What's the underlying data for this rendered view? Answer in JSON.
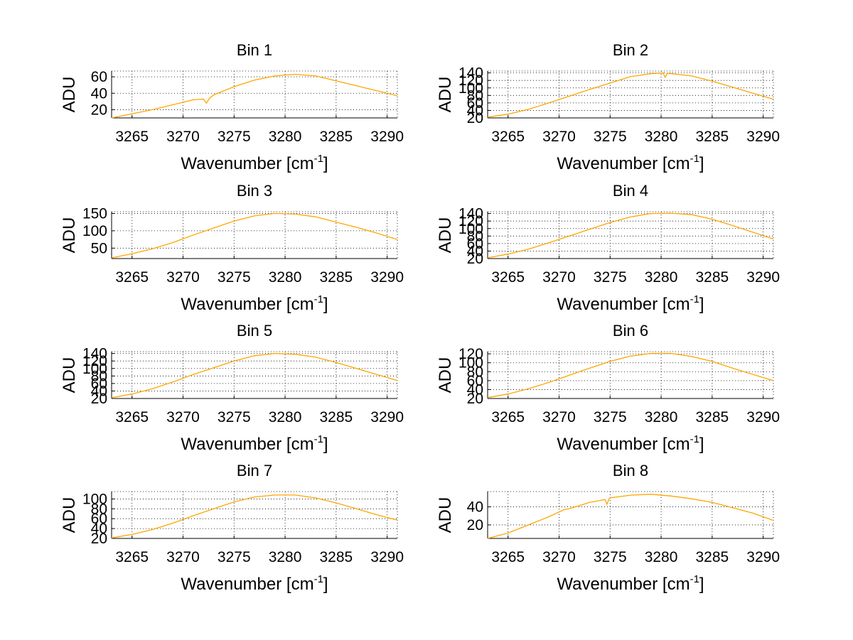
{
  "chart_data": [
    {
      "type": "line",
      "title": "Bin 1",
      "xlabel": "Wavenumber [cm",
      "xlabel_sup": "-1",
      "xlabel_end": "]",
      "ylabel": "ADU",
      "xlim": [
        3263,
        3291
      ],
      "xticks": [
        3265,
        3270,
        3275,
        3280,
        3285,
        3290
      ],
      "ylim": [
        10,
        67
      ],
      "yticks": [
        20,
        40,
        60
      ],
      "ytick_labels": [
        "20",
        "40",
        "60"
      ],
      "grid": true,
      "line_color": "#ffa500",
      "x": [
        3263,
        3265,
        3267,
        3269,
        3271,
        3272,
        3272.3,
        3272.6,
        3273,
        3275,
        3277,
        3279,
        3281,
        3283,
        3285,
        3287,
        3289,
        3291
      ],
      "values": [
        10,
        15,
        20,
        26,
        32,
        33,
        28,
        34,
        38,
        48,
        56,
        61,
        63,
        61,
        55,
        49,
        43,
        37
      ]
    },
    {
      "type": "line",
      "title": "Bin 2",
      "xlabel": "Wavenumber [cm",
      "xlabel_sup": "-1",
      "xlabel_end": "]",
      "ylabel": "ADU",
      "xlim": [
        3263,
        3291
      ],
      "xticks": [
        3265,
        3270,
        3275,
        3280,
        3285,
        3290
      ],
      "ylim": [
        20,
        145
      ],
      "yticks": [
        20,
        40,
        60,
        80,
        100,
        120,
        140
      ],
      "ytick_labels": [
        "20",
        "40",
        "60",
        "80",
        "100",
        "120",
        "140"
      ],
      "grid": true,
      "line_color": "#ffa500",
      "x": [
        3263,
        3265,
        3267,
        3269,
        3271,
        3273,
        3275,
        3277,
        3279,
        3280.2,
        3280.4,
        3280.6,
        3281,
        3283,
        3285,
        3287,
        3289,
        3291
      ],
      "values": [
        22,
        30,
        43,
        60,
        78,
        96,
        113,
        130,
        138,
        140,
        128,
        139,
        138,
        132,
        118,
        102,
        86,
        70
      ]
    },
    {
      "type": "line",
      "title": "Bin 3",
      "xlabel": "Wavenumber [cm",
      "xlabel_sup": "-1",
      "xlabel_end": "]",
      "ylabel": "ADU",
      "xlim": [
        3263,
        3291
      ],
      "xticks": [
        3265,
        3270,
        3275,
        3280,
        3285,
        3290
      ],
      "ylim": [
        20,
        155
      ],
      "yticks": [
        50,
        100,
        150
      ],
      "ytick_labels": [
        "50",
        "100",
        "150"
      ],
      "grid": true,
      "line_color": "#ffa500",
      "x": [
        3263,
        3265,
        3267,
        3269,
        3271,
        3273,
        3275,
        3277,
        3279,
        3281,
        3283,
        3285,
        3287,
        3289,
        3291
      ],
      "values": [
        22,
        34,
        48,
        66,
        88,
        108,
        128,
        143,
        150,
        148,
        140,
        125,
        110,
        93,
        75
      ]
    },
    {
      "type": "line",
      "title": "Bin 4",
      "xlabel": "Wavenumber [cm",
      "xlabel_sup": "-1",
      "xlabel_end": "]",
      "ylabel": "ADU",
      "xlim": [
        3263,
        3291
      ],
      "xticks": [
        3265,
        3270,
        3275,
        3280,
        3285,
        3290
      ],
      "ylim": [
        20,
        145
      ],
      "yticks": [
        20,
        40,
        60,
        80,
        100,
        120,
        140
      ],
      "ytick_labels": [
        "20",
        "40",
        "60",
        "80",
        "100",
        "120",
        "140"
      ],
      "grid": true,
      "line_color": "#ffa500",
      "x": [
        3263,
        3265,
        3267,
        3269,
        3271,
        3273,
        3275,
        3277,
        3279,
        3281,
        3283,
        3285,
        3287,
        3289,
        3291
      ],
      "values": [
        22,
        32,
        45,
        62,
        80,
        98,
        116,
        131,
        140,
        141,
        137,
        125,
        108,
        90,
        72
      ]
    },
    {
      "type": "line",
      "title": "Bin 5",
      "xlabel": "Wavenumber [cm",
      "xlabel_sup": "-1",
      "xlabel_end": "]",
      "ylabel": "ADU",
      "xlim": [
        3263,
        3291
      ],
      "xticks": [
        3265,
        3270,
        3275,
        3280,
        3285,
        3290
      ],
      "ylim": [
        20,
        145
      ],
      "yticks": [
        20,
        40,
        60,
        80,
        100,
        120,
        140
      ],
      "ytick_labels": [
        "20",
        "40",
        "60",
        "80",
        "100",
        "120",
        "140"
      ],
      "grid": true,
      "line_color": "#ffa500",
      "x": [
        3263,
        3265,
        3267,
        3269,
        3271,
        3273,
        3275,
        3277,
        3279,
        3281,
        3283,
        3285,
        3287,
        3289,
        3291
      ],
      "values": [
        22,
        32,
        46,
        64,
        84,
        102,
        120,
        134,
        140,
        138,
        130,
        116,
        100,
        84,
        68
      ]
    },
    {
      "type": "line",
      "title": "Bin 6",
      "xlabel": "Wavenumber [cm",
      "xlabel_sup": "-1",
      "xlabel_end": "]",
      "ylabel": "ADU",
      "xlim": [
        3263,
        3291
      ],
      "xticks": [
        3265,
        3270,
        3275,
        3280,
        3285,
        3290
      ],
      "ylim": [
        20,
        125
      ],
      "yticks": [
        20,
        40,
        60,
        80,
        100,
        120
      ],
      "ytick_labels": [
        "20",
        "40",
        "60",
        "80",
        "100",
        "120"
      ],
      "grid": true,
      "line_color": "#ffa500",
      "x": [
        3263,
        3265,
        3267,
        3269,
        3271,
        3273,
        3275,
        3277,
        3279,
        3281,
        3283,
        3285,
        3287,
        3289,
        3291
      ],
      "values": [
        22,
        30,
        42,
        56,
        72,
        88,
        103,
        115,
        121,
        121,
        114,
        103,
        88,
        74,
        60
      ]
    },
    {
      "type": "line",
      "title": "Bin 7",
      "xlabel": "Wavenumber [cm",
      "xlabel_sup": "-1",
      "xlabel_end": "]",
      "ylabel": "ADU",
      "xlim": [
        3263,
        3291
      ],
      "xticks": [
        3265,
        3270,
        3275,
        3280,
        3285,
        3290
      ],
      "ylim": [
        20,
        115
      ],
      "yticks": [
        20,
        40,
        60,
        80,
        100
      ],
      "ytick_labels": [
        "20",
        "40",
        "60",
        "80",
        "100"
      ],
      "grid": true,
      "line_color": "#ffa500",
      "x": [
        3263,
        3265,
        3267,
        3269,
        3271,
        3273,
        3275,
        3277,
        3279,
        3281,
        3283,
        3285,
        3287,
        3289,
        3291
      ],
      "values": [
        21,
        28,
        38,
        51,
        66,
        80,
        94,
        104,
        108,
        108,
        102,
        92,
        80,
        68,
        57
      ]
    },
    {
      "type": "line",
      "title": "Bin 8",
      "xlabel": "Wavenumber [cm",
      "xlabel_sup": "-1",
      "xlabel_end": "]",
      "ylabel": "ADU",
      "xlim": [
        3263,
        3291
      ],
      "xticks": [
        3265,
        3270,
        3275,
        3280,
        3285,
        3290
      ],
      "ylim": [
        5,
        57
      ],
      "yticks": [
        20,
        40
      ],
      "ytick_labels": [
        "20",
        "40"
      ],
      "grid": true,
      "line_color": "#ffa500",
      "x": [
        3263,
        3265,
        3267,
        3269,
        3270.5,
        3271,
        3273,
        3274.5,
        3274.7,
        3274.9,
        3275,
        3277,
        3279,
        3281,
        3283,
        3285,
        3287,
        3289,
        3291
      ],
      "values": [
        5,
        11,
        20,
        29,
        37,
        38,
        45,
        48,
        43,
        49,
        50,
        53,
        54,
        52,
        49,
        45,
        39,
        33,
        25
      ]
    }
  ]
}
